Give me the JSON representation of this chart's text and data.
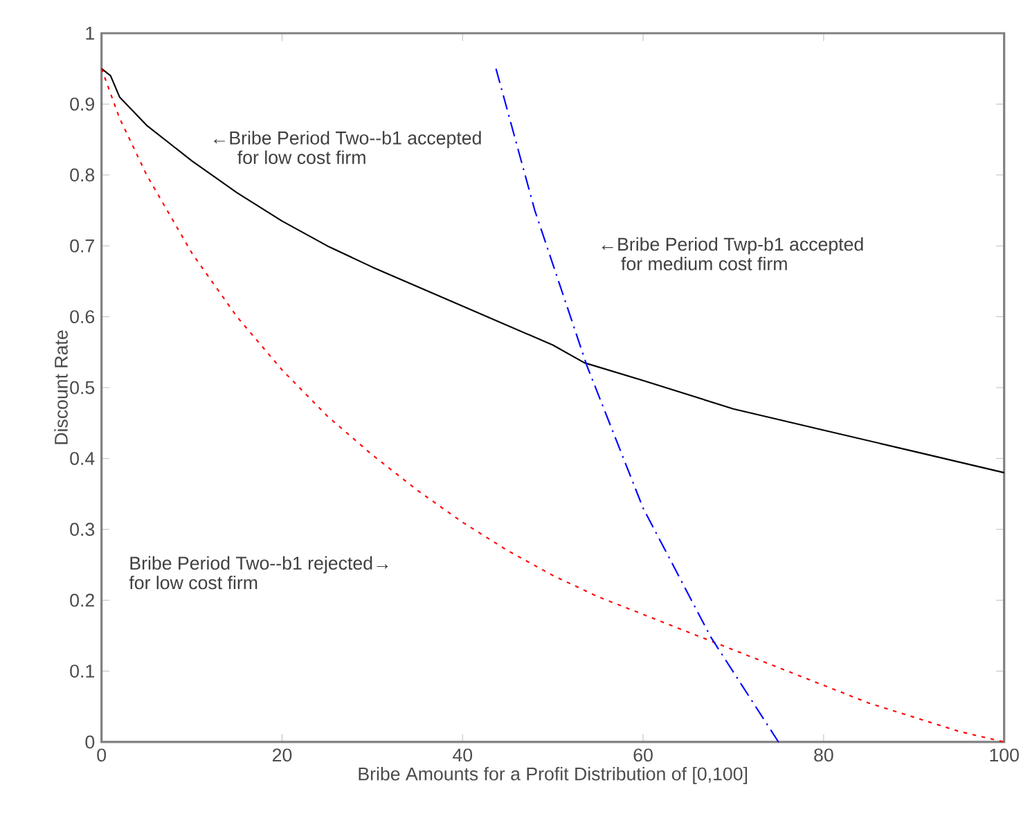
{
  "chart_data": {
    "type": "line",
    "xlabel": "Bribe Amounts for a Profit Distribution of [0,100]",
    "ylabel": "Discount Rate",
    "xlim": [
      0,
      100
    ],
    "ylim": [
      0,
      1
    ],
    "xticks": [
      0,
      20,
      40,
      60,
      80,
      100
    ],
    "yticks": [
      0,
      0.1,
      0.2,
      0.3,
      0.4,
      0.5,
      0.6,
      0.7,
      0.8,
      0.9,
      1
    ],
    "grid": false,
    "series": [
      {
        "color": "#000000",
        "line_style": "solid",
        "x": [
          0,
          1,
          2,
          5,
          10,
          15,
          20,
          25,
          30,
          40,
          50,
          53.5,
          60,
          70,
          80,
          90,
          100
        ],
        "values": [
          0.95,
          0.94,
          0.91,
          0.87,
          0.82,
          0.775,
          0.735,
          0.7,
          0.67,
          0.615,
          0.56,
          0.535,
          0.51,
          0.47,
          0.44,
          0.41,
          0.38
        ]
      },
      {
        "color": "#ff0000",
        "line_style": "dotted",
        "x": [
          0,
          2,
          5,
          10,
          15,
          20,
          25,
          30,
          35,
          40,
          45,
          50,
          55,
          60,
          65,
          70,
          75,
          80,
          85,
          90,
          95,
          100
        ],
        "values": [
          0.95,
          0.88,
          0.8,
          0.69,
          0.6,
          0.525,
          0.46,
          0.405,
          0.355,
          0.31,
          0.27,
          0.235,
          0.205,
          0.18,
          0.155,
          0.13,
          0.105,
          0.08,
          0.055,
          0.035,
          0.015,
          0
        ]
      },
      {
        "color": "#0000ff",
        "line_style": "dashdot",
        "x": [
          43.7,
          48,
          53.8,
          60,
          67.5,
          75
        ],
        "values": [
          0.95,
          0.75,
          0.53,
          0.33,
          0.148,
          0
        ]
      }
    ],
    "annotations": [
      "←Bribe Period Two--b1 accepted",
      "for low cost firm",
      "←Bribe Period Twp-b1 accepted",
      "for medium cost firm",
      "Bribe Period Two--b1 rejected→",
      "for low cost firm"
    ]
  }
}
